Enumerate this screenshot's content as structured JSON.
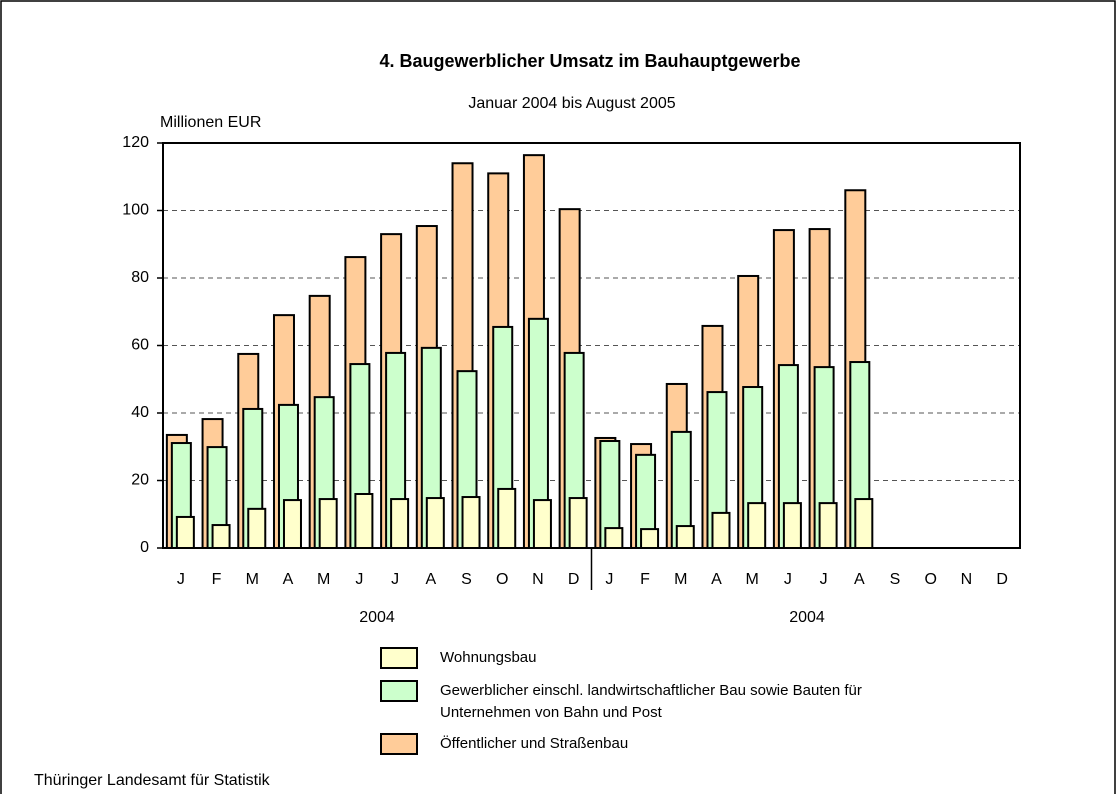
{
  "chart_data": {
    "type": "overlapped-bar",
    "title": "4. Baugewerblicher Umsatz im Bauhauptgewerbe",
    "subtitle": "Januar 2004 bis August 2005",
    "y_label": "Millionen EUR",
    "categories": [
      "J",
      "F",
      "M",
      "A",
      "M",
      "J",
      "J",
      "A",
      "S",
      "O",
      "N",
      "D",
      "J",
      "F",
      "M",
      "A",
      "M",
      "J",
      "J",
      "A",
      "S",
      "O",
      "N",
      "D"
    ],
    "year_labels": [
      "2004",
      "2004"
    ],
    "series": [
      {
        "name": "Öffentlicher und Straßenbau",
        "color": "#ffcc99",
        "values": [
          33.5,
          38.2,
          57.5,
          69,
          74.7,
          86.2,
          93,
          95.4,
          114,
          111,
          116.4,
          100.4,
          32.6,
          30.8,
          48.6,
          65.8,
          80.6,
          94.2,
          94.5,
          106,
          null,
          null,
          null,
          null
        ]
      },
      {
        "name": "Gewerblicher einschl. landwirtschaftlicher Bau sowie Bauten für Unternehmen von Bahn und Post",
        "color": "#ccffcc",
        "values": [
          31.1,
          29.9,
          41.2,
          42.4,
          44.7,
          54.5,
          57.8,
          59.3,
          52.4,
          65.5,
          67.9,
          57.8,
          31.7,
          27.6,
          34.4,
          46.2,
          47.7,
          54.2,
          53.6,
          55.1,
          null,
          null,
          null,
          null
        ]
      },
      {
        "name": "Wohnungsbau",
        "color": "#ffffcc",
        "values": [
          9.2,
          6.8,
          11.6,
          14.2,
          14.5,
          16,
          14.5,
          14.8,
          15.1,
          17.5,
          14.2,
          14.8,
          5.9,
          5.6,
          6.5,
          10.4,
          13.3,
          13.3,
          13.3,
          14.5,
          null,
          null,
          null,
          null
        ]
      }
    ],
    "ylim": [
      0,
      120
    ],
    "yticks": [
      0,
      20,
      40,
      60,
      80,
      100,
      120
    ],
    "grid": true,
    "source": "Thüringer Landesamt für Statistik"
  }
}
